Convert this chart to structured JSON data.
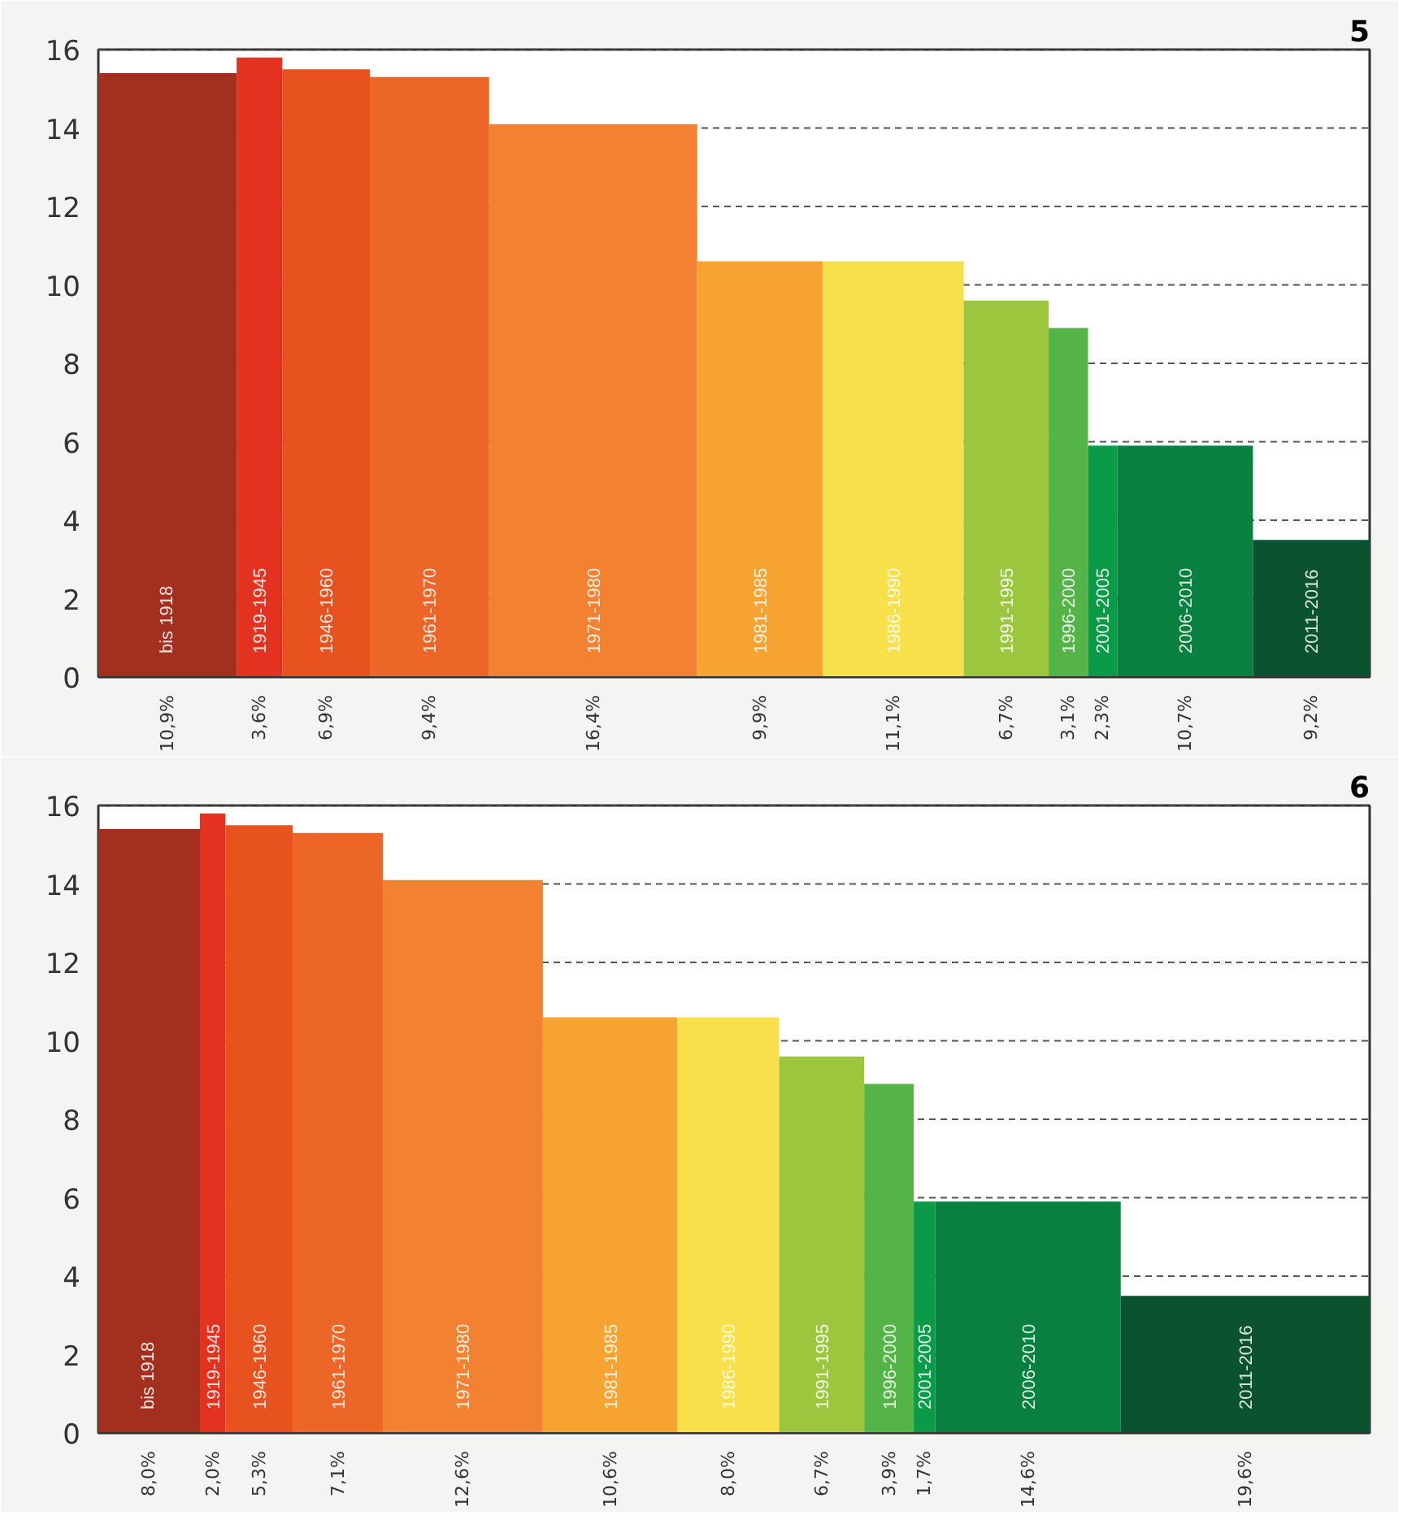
{
  "chart_data": [
    {
      "type": "bar",
      "annotations": [
        "5",
        "10,9%",
        "3,6%",
        "6,9%",
        "9,4%",
        "16,4%",
        "9,9%",
        "11,1%",
        "6,7%",
        "3,1%",
        "2,3%",
        "10,7%",
        "9,2%"
      ],
      "categories": [
        "bis 1918",
        "1919-1945",
        "1946-1960",
        "1961-1970",
        "1971-1980",
        "1981-1985",
        "1986-1990",
        "1991-1995",
        "1996-2000",
        "2001-2005",
        "2006-2010",
        "2011-2016"
      ],
      "values": [
        15.4,
        15.8,
        15.5,
        15.3,
        14.1,
        10.6,
        10.6,
        9.6,
        8.9,
        5.9,
        5.9,
        3.5
      ],
      "colors": [
        "#a3301e",
        "#e3321f",
        "#e8521f",
        "#ec6627",
        "#f28231",
        "#f7a331",
        "#f8e04a",
        "#9cc63e",
        "#55b447",
        "#0b9a48",
        "#0a8040",
        "#0a5230"
      ],
      "ylim": [
        0,
        16
      ],
      "yticks": [
        0,
        2,
        4,
        6,
        8,
        10,
        12,
        14,
        16
      ],
      "grid": "y",
      "line_style": "dashed"
    },
    {
      "type": "bar",
      "annotations": [
        "6",
        "8,0%",
        "2,0%",
        "5,3%",
        "7,1%",
        "12,6%",
        "10,6%",
        "8,0%",
        "6,7%",
        "3,9%",
        "1,7%",
        "14,6%",
        "19,6%"
      ],
      "categories": [
        "bis 1918",
        "1919-1945",
        "1946-1960",
        "1961-1970",
        "1971-1980",
        "1981-1985",
        "1986-1990",
        "1991-1995",
        "1996-2000",
        "2001-2005",
        "2006-2010",
        "2011-2016"
      ],
      "values": [
        15.4,
        15.8,
        15.5,
        15.3,
        14.1,
        10.6,
        10.6,
        9.6,
        8.9,
        5.9,
        5.9,
        3.5
      ],
      "colors": [
        "#a3301e",
        "#e3321f",
        "#e8521f",
        "#ec6627",
        "#f28231",
        "#f7a331",
        "#f8e04a",
        "#9cc63e",
        "#55b447",
        "#0b9a48",
        "#0a8040",
        "#0a5230"
      ],
      "ylim": [
        0,
        16
      ],
      "yticks": [
        0,
        2,
        4,
        6,
        8,
        10,
        12,
        14,
        16
      ],
      "grid": "y",
      "line_style": "dashed"
    }
  ]
}
